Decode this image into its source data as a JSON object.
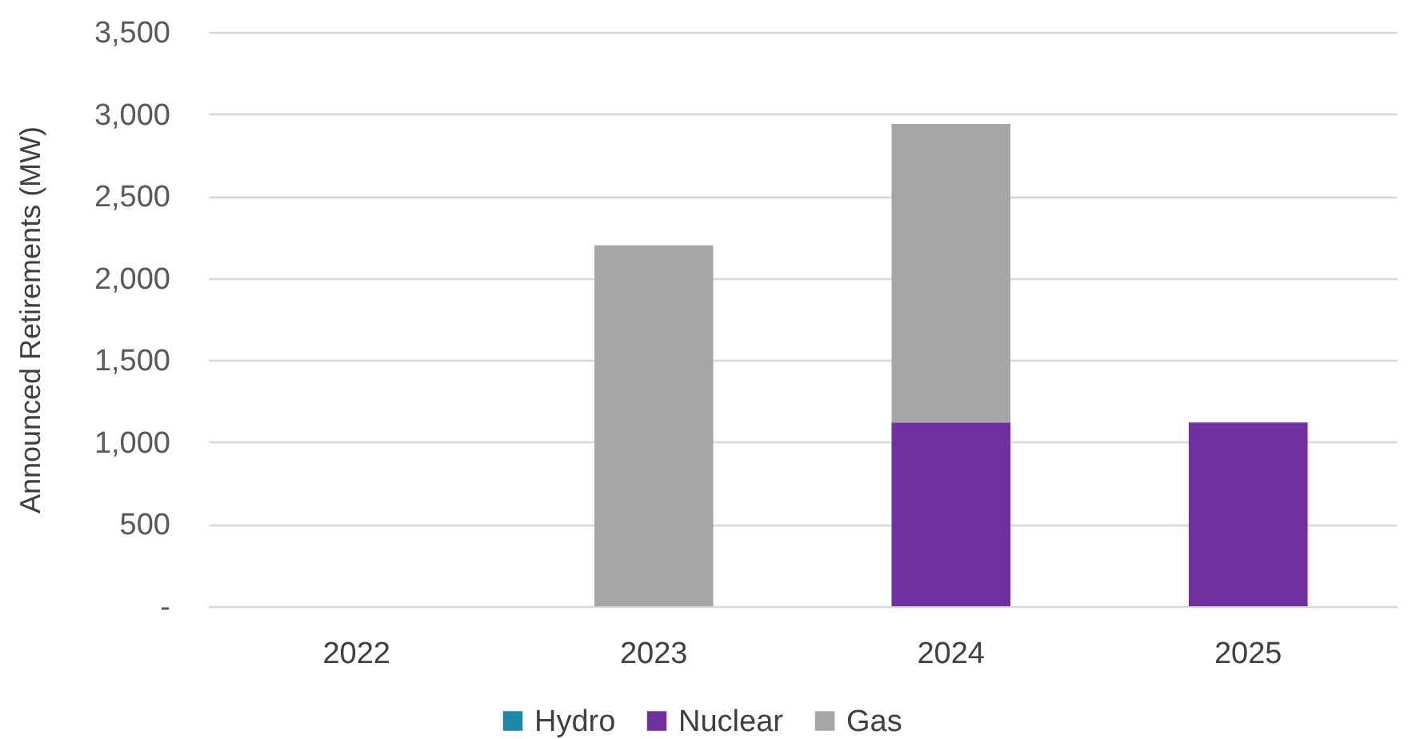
{
  "chart_data": {
    "type": "bar",
    "stacked": true,
    "ylabel": "Announced Retirements (MW)",
    "categories": [
      "2022",
      "2023",
      "2024",
      "2025"
    ],
    "series": [
      {
        "name": "Hydro",
        "color": "#1f87a8",
        "values": [
          null,
          null,
          null,
          null
        ]
      },
      {
        "name": "Nuclear",
        "color": "#7030a0",
        "values": [
          null,
          null,
          1120,
          1120
        ]
      },
      {
        "name": "Gas",
        "color": "#a6a6a6",
        "values": [
          null,
          2200,
          1820,
          null
        ]
      }
    ],
    "ylim": [
      0,
      3500
    ],
    "yticks": [
      {
        "value": 0,
        "label": "-"
      },
      {
        "value": 500,
        "label": "500"
      },
      {
        "value": 1000,
        "label": "1,000"
      },
      {
        "value": 1500,
        "label": "1,500"
      },
      {
        "value": 2000,
        "label": "2,000"
      },
      {
        "value": 2500,
        "label": "2,500"
      },
      {
        "value": 3000,
        "label": "3,000"
      },
      {
        "value": 3500,
        "label": "3,500"
      }
    ],
    "grid": "y",
    "legend": "bottom"
  }
}
